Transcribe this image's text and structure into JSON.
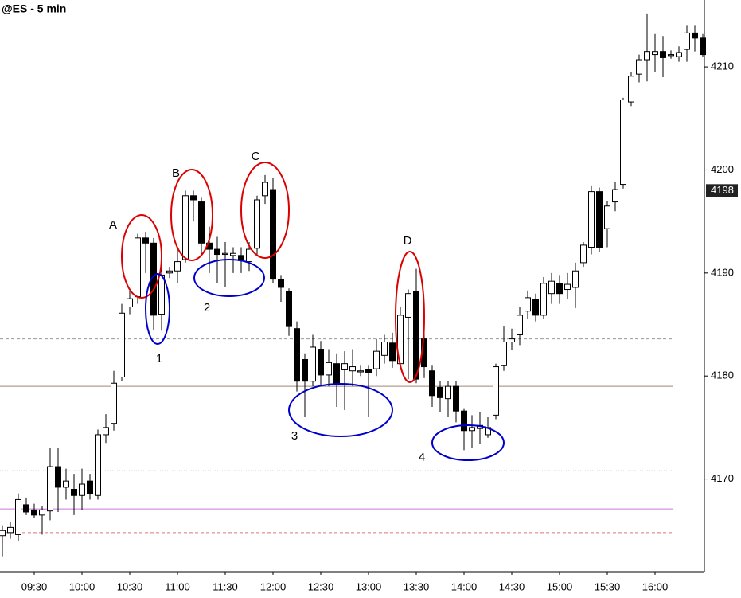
{
  "chart_data": {
    "type": "candlestick",
    "title": "@ES - 5 min",
    "categories": [
      null,
      null,
      null,
      null,
      "09:30",
      null,
      null,
      null,
      null,
      null,
      "10:00",
      null,
      null,
      null,
      null,
      null,
      "10:30",
      null,
      null,
      null,
      null,
      null,
      "11:00",
      null,
      null,
      null,
      null,
      null,
      "11:30",
      null,
      null,
      null,
      null,
      null,
      "12:00",
      null,
      null,
      null,
      null,
      null,
      "12:30",
      null,
      null,
      null,
      null,
      null,
      "13:00",
      null,
      null,
      null,
      null,
      null,
      "13:30",
      null,
      null,
      null,
      null,
      null,
      "14:00",
      null,
      null,
      null,
      null,
      null,
      "14:30",
      null,
      null,
      null,
      null,
      null,
      "15:00",
      null,
      null,
      null,
      null,
      null,
      "15:30",
      null,
      null,
      null,
      null,
      null,
      "16:00",
      null,
      null,
      null,
      null,
      null,
      null
    ],
    "open": [
      4164.5,
      4164.8,
      4164.6,
      4167.5,
      4167,
      4166.5,
      4166.9,
      4171.2,
      4169.2,
      4169,
      4168.4,
      4169.8,
      4168.4,
      4174.3,
      4175.4,
      4179.9,
      4186.7,
      4187.7,
      4193.4,
      4192.9,
      4186,
      4190,
      4190.2,
      4191.3,
      4197.5,
      4196.9,
      4192.9,
      4192.3,
      4191.8,
      4191.7,
      4191.7,
      4191.1,
      4192.4,
      4197.5,
      4198.1,
      4189.4,
      4188.2,
      4184.6,
      4181.6,
      4179.5,
      4182.6,
      4180.1,
      4181.2,
      4180.6,
      4180.5,
      4180.4,
      4180.6,
      4180.7,
      4182,
      4183.2,
      4181.2,
      4185.7,
      4188.2,
      4183.6,
      4180.5,
      4178.9,
      4177.8,
      4179,
      4176.6,
      4174.7,
      4174.9,
      4174.3,
      4176.2,
      4181,
      4183.3,
      4184,
      4186.3,
      4187.4,
      4185.9,
      4188,
      4189,
      4188.4,
      4188.6,
      4191,
      4192.5,
      4197.9,
      4194.3,
      4196.9,
      4198.6,
      4206.6,
      4209.3,
      4210.7,
      4211.2,
      4211.5,
      4211.1,
      4211,
      4211.7,
      4213.3,
      4212.8
    ],
    "high": [
      4165.5,
      4165.8,
      4168.6,
      4168.2,
      4167.6,
      4167.4,
      4173,
      4173,
      4171,
      4170.5,
      4171,
      4170.5,
      4174.8,
      4176.3,
      4180.5,
      4187,
      4188.3,
      4193.8,
      4194,
      4193.4,
      4190.4,
      4190.6,
      4192.2,
      4198,
      4198,
      4197.3,
      4194.5,
      4193.5,
      4193,
      4192.5,
      4192.5,
      4193,
      4197.5,
      4199.5,
      4199.2,
      4189.8,
      4188.5,
      4185.3,
      4182.2,
      4184,
      4183.4,
      4182.6,
      4182.2,
      4182.4,
      4182.6,
      4181,
      4181,
      4183.6,
      4184,
      4184.2,
      4186.7,
      4188.4,
      4190.4,
      4184.7,
      4181,
      4179.5,
      4179.5,
      4179.5,
      4176.8,
      4176.2,
      4176.5,
      4176,
      4181.2,
      4184.8,
      4184.6,
      4186.7,
      4188.3,
      4188,
      4189.6,
      4190,
      4189.8,
      4190,
      4191,
      4193,
      4198.5,
      4198.3,
      4197,
      4198.8,
      4207,
      4209.5,
      4211.2,
      4215.2,
      4213.2,
      4213,
      4211.6,
      4212,
      4214,
      4214,
      4213.2
    ],
    "low": [
      4162.5,
      4164.2,
      4164,
      4166.5,
      4166.2,
      4164.6,
      4166,
      4166.8,
      4168,
      4166.5,
      4167,
      4168,
      4168,
      4173.5,
      4174.7,
      4179.5,
      4186,
      4187,
      4190,
      4184.5,
      4184.4,
      4189.5,
      4189,
      4191,
      4195,
      4191.8,
      4190,
      4189,
      4188.6,
      4190,
      4190,
      4190.2,
      4191.8,
      4196.7,
      4189,
      4187.2,
      4183.9,
      4178.5,
      4176,
      4179,
      4179,
      4179,
      4177,
      4176.7,
      4179,
      4180,
      4176,
      4180,
      4181.2,
      4180.8,
      4180.6,
      4179.7,
      4179.3,
      4179.8,
      4177,
      4176.5,
      4176,
      4175.5,
      4172.8,
      4173,
      4173.4,
      4174,
      4175.8,
      4180.5,
      4182.5,
      4183,
      4185.5,
      4185.3,
      4185.5,
      4187,
      4187,
      4187.5,
      4186.6,
      4190.6,
      4191.8,
      4192,
      4192.5,
      4196,
      4198.2,
      4206.2,
      4208.5,
      4208.6,
      4209.5,
      4209,
      4210.8,
      4210.5,
      4210.5,
      4211.5,
      4211
    ],
    "close": [
      4165,
      4165.3,
      4168,
      4166.8,
      4166.5,
      4167,
      4171.2,
      4169.2,
      4169.8,
      4168.4,
      4169.5,
      4168.6,
      4174.3,
      4175,
      4179.3,
      4186.1,
      4187.5,
      4193.4,
      4192.9,
      4185.9,
      4189.8,
      4190.2,
      4191.1,
      4197.5,
      4197.1,
      4192.9,
      4192.3,
      4191.8,
      4191.9,
      4191.9,
      4191.2,
      4192.3,
      4197.1,
      4198.8,
      4189.4,
      4188.6,
      4184.8,
      4179.5,
      4179.5,
      4182.8,
      4180.1,
      4181.3,
      4179.3,
      4181.2,
      4180.9,
      4180.5,
      4180.3,
      4182.4,
      4183.3,
      4181.5,
      4185.9,
      4188,
      4179.7,
      4180.9,
      4178.1,
      4177.9,
      4179,
      4176.6,
      4174.7,
      4175,
      4175.2,
      4175,
      4180.9,
      4183.3,
      4183.6,
      4185.9,
      4187.6,
      4185.9,
      4189,
      4189.2,
      4188,
      4188.9,
      4190.2,
      4192.7,
      4197.9,
      4192.5,
      4196.5,
      4198.1,
      4206.8,
      4209.1,
      4210.7,
      4211.5,
      4211.5,
      4210.9,
      4211.2,
      4211.4,
      4213.3,
      4212.8,
      4211.2
    ],
    "up_color": "#ffffff",
    "down_color": "#000000",
    "ylim": [
      4161,
      4216.5
    ],
    "yticks": [
      4170,
      4180,
      4190,
      4200,
      4210
    ],
    "price_marker": 4198,
    "reference_lines": [
      {
        "value": 4183.6,
        "color": "#999999",
        "style": "dashed"
      },
      {
        "value": 4179,
        "color": "#a08878",
        "style": "solid"
      },
      {
        "value": 4170.8,
        "color": "#999999",
        "style": "dotted"
      },
      {
        "value": 4167.1,
        "color": "#cc77dd",
        "style": "solid"
      },
      {
        "value": 4164.8,
        "color": "#dd7777",
        "style": "dashed"
      }
    ],
    "annotations": [
      "A",
      "B",
      "C",
      "D",
      "1",
      "2",
      "3",
      "4"
    ]
  }
}
